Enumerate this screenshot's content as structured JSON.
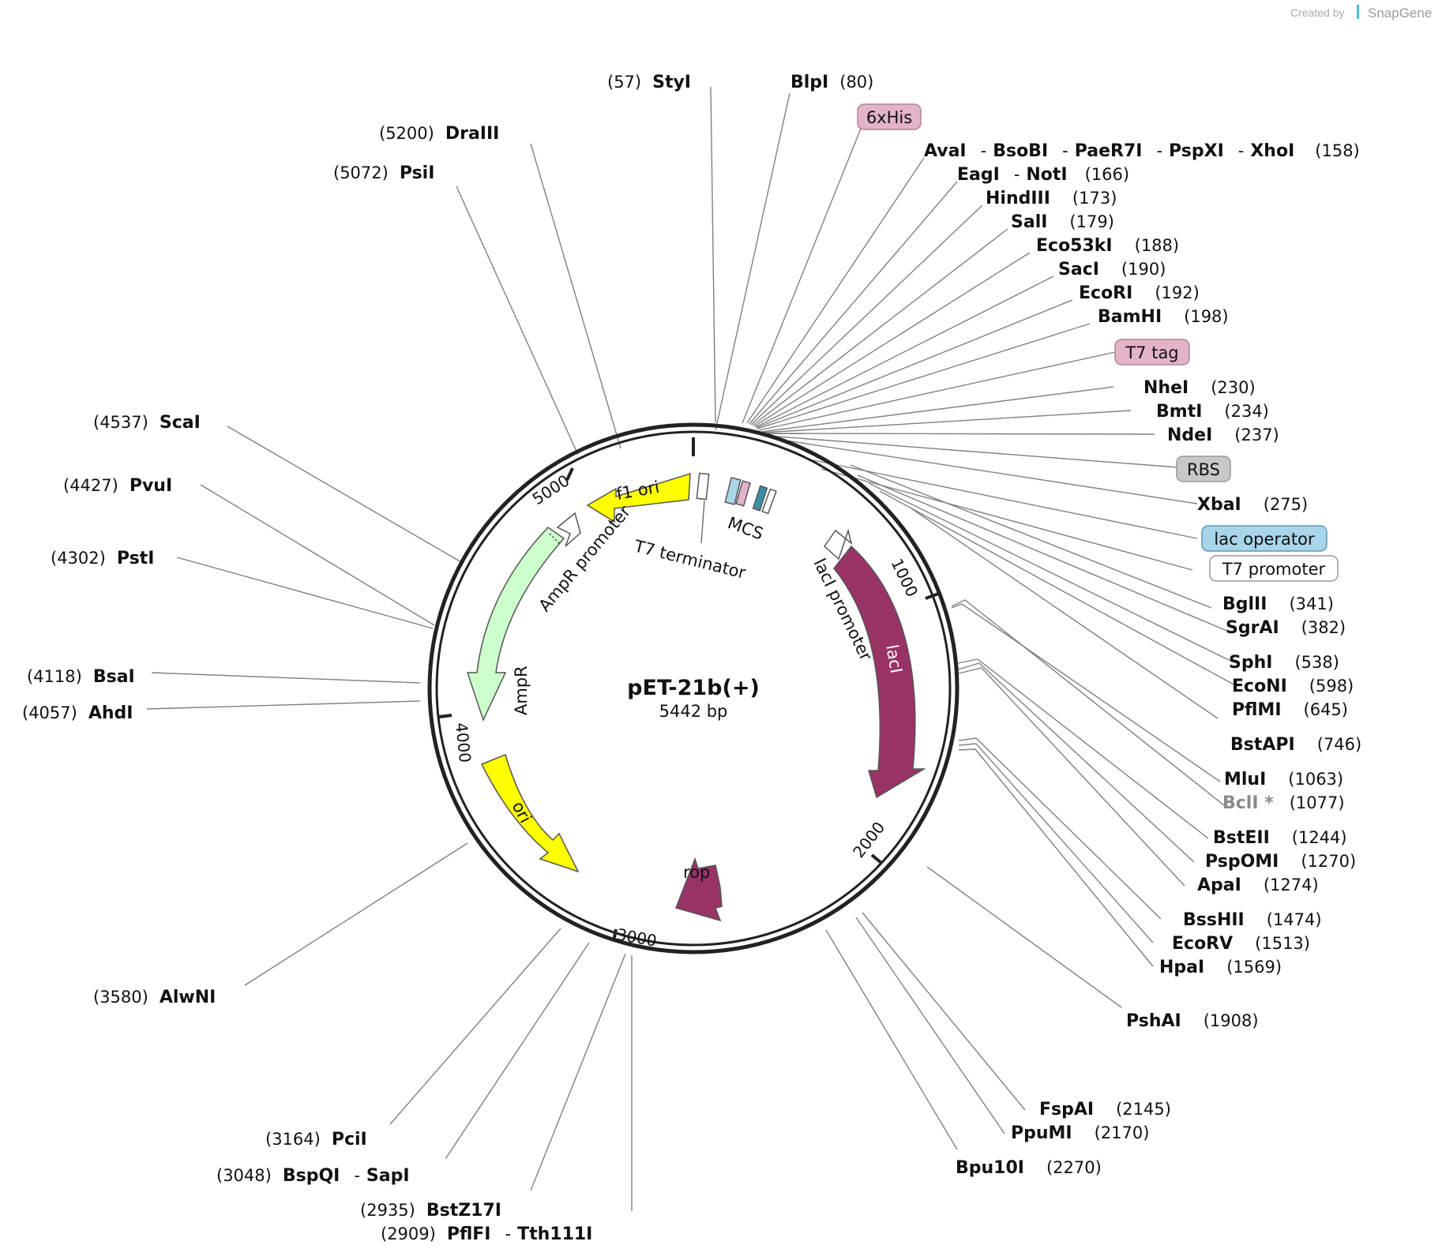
{
  "watermark": {
    "created_by": "Created by",
    "brand": "SnapGene"
  },
  "plasmid": {
    "name": "pET-21b(+)",
    "size_label": "5442 bp"
  },
  "ticks": [
    "1000",
    "2000",
    "3000",
    "4000",
    "5000"
  ],
  "features": {
    "f1_ori": "f1 ori",
    "ampr_promoter": "AmpR promoter",
    "ampr": "AmpR",
    "ori": "ori",
    "rop": "rop",
    "laci": "lacI",
    "laci_promoter": "lacI promoter",
    "mcs": "MCS",
    "t7_terminator": "T7 terminator"
  },
  "boxed_features": {
    "his": "6xHis",
    "t7tag": "T7 tag",
    "rbs": "RBS",
    "lac_operator": "lac operator",
    "t7_promoter": "T7 promoter"
  },
  "sites": {
    "styi": {
      "pos": "(57)",
      "name": "StyI"
    },
    "blpi": {
      "name": "BlpI",
      "pos": "(80)"
    },
    "draiii": {
      "pos": "(5200)",
      "name": "DraIII"
    },
    "psii": {
      "pos": "(5072)",
      "name": "PsiI"
    },
    "xhoi_group": {
      "n1": "AvaI",
      "n2": "BsoBI",
      "n3": "PaeR7I",
      "n4": "PspXI",
      "n5": "XhoI",
      "pos": "(158)"
    },
    "noti_group": {
      "n1": "EagI",
      "n2": "NotI",
      "pos": "(166)"
    },
    "hindiii": {
      "name": "HindIII",
      "pos": "(173)"
    },
    "sali": {
      "name": "SalI",
      "pos": "(179)"
    },
    "eco53ki": {
      "name": "Eco53kI",
      "pos": "(188)"
    },
    "saci": {
      "name": "SacI",
      "pos": "(190)"
    },
    "ecori": {
      "name": "EcoRI",
      "pos": "(192)"
    },
    "bamhi": {
      "name": "BamHI",
      "pos": "(198)"
    },
    "nhei": {
      "name": "NheI",
      "pos": "(230)"
    },
    "bmti": {
      "name": "BmtI",
      "pos": "(234)"
    },
    "ndei": {
      "name": "NdeI",
      "pos": "(237)"
    },
    "xbai": {
      "name": "XbaI",
      "pos": "(275)"
    },
    "bglii": {
      "name": "BglII",
      "pos": "(341)"
    },
    "sgrai": {
      "name": "SgrAI",
      "pos": "(382)"
    },
    "sphi": {
      "name": "SphI",
      "pos": "(538)"
    },
    "econi": {
      "name": "EcoNI",
      "pos": "(598)"
    },
    "pflmi": {
      "name": "PflMI",
      "pos": "(645)"
    },
    "bstapi": {
      "name": "BstAPI",
      "pos": "(746)"
    },
    "mlui": {
      "name": "MluI",
      "pos": "(1063)"
    },
    "bcli": {
      "name": "BclI *",
      "pos": "(1077)"
    },
    "bsteii": {
      "name": "BstEII",
      "pos": "(1244)"
    },
    "pspomi": {
      "name": "PspOMI",
      "pos": "(1270)"
    },
    "apai": {
      "name": "ApaI",
      "pos": "(1274)"
    },
    "bsshii": {
      "name": "BssHII",
      "pos": "(1474)"
    },
    "ecorv": {
      "name": "EcoRV",
      "pos": "(1513)"
    },
    "hpai": {
      "name": "HpaI",
      "pos": "(1569)"
    },
    "pshai": {
      "name": "PshAI",
      "pos": "(1908)"
    },
    "fspai": {
      "name": "FspAI",
      "pos": "(2145)"
    },
    "ppumi": {
      "name": "PpuMI",
      "pos": "(2170)"
    },
    "bpu10i": {
      "name": "Bpu10I",
      "pos": "(2270)"
    },
    "scai": {
      "pos": "(4537)",
      "name": "ScaI"
    },
    "pvui": {
      "pos": "(4427)",
      "name": "PvuI"
    },
    "psti": {
      "pos": "(4302)",
      "name": "PstI"
    },
    "bsai": {
      "pos": "(4118)",
      "name": "BsaI"
    },
    "ahdi": {
      "pos": "(4057)",
      "name": "AhdI"
    },
    "alwni": {
      "pos": "(3580)",
      "name": "AlwNI"
    },
    "pcii": {
      "pos": "(3164)",
      "name": "PciI"
    },
    "sapi_group": {
      "pos": "(3048)",
      "n1": "BspQI",
      "n2": "SapI"
    },
    "bstz17i": {
      "pos": "(2935)",
      "name": "BstZ17I"
    },
    "tth111i_group": {
      "pos": "(2909)",
      "n1": "PflFI",
      "n2": "Tth111I"
    }
  },
  "colors": {
    "yellow": "#ffff00",
    "lightgreen": "#ccffcc",
    "magenta": "#993366",
    "pink": "#e3b3c9",
    "lightblue": "#a8d5ea",
    "gray": "#c8c8c8",
    "backbone": "#222222"
  }
}
